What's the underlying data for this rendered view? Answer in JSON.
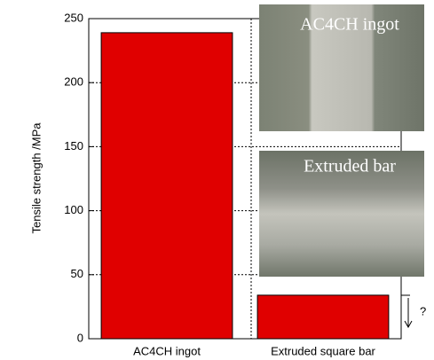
{
  "chart_data": {
    "type": "bar",
    "y_label": "Tensile strength /MPa",
    "categories": [
      "AC4CH ingot",
      "Extruded square bar"
    ],
    "values": [
      239,
      34
    ],
    "color": "#e00000",
    "ylim": [
      0,
      250
    ],
    "yticks": [
      0,
      50,
      100,
      150,
      200,
      250
    ],
    "grid": true,
    "annotations": [
      "AC4CH ingot",
      "Extruded bar",
      "?"
    ]
  }
}
